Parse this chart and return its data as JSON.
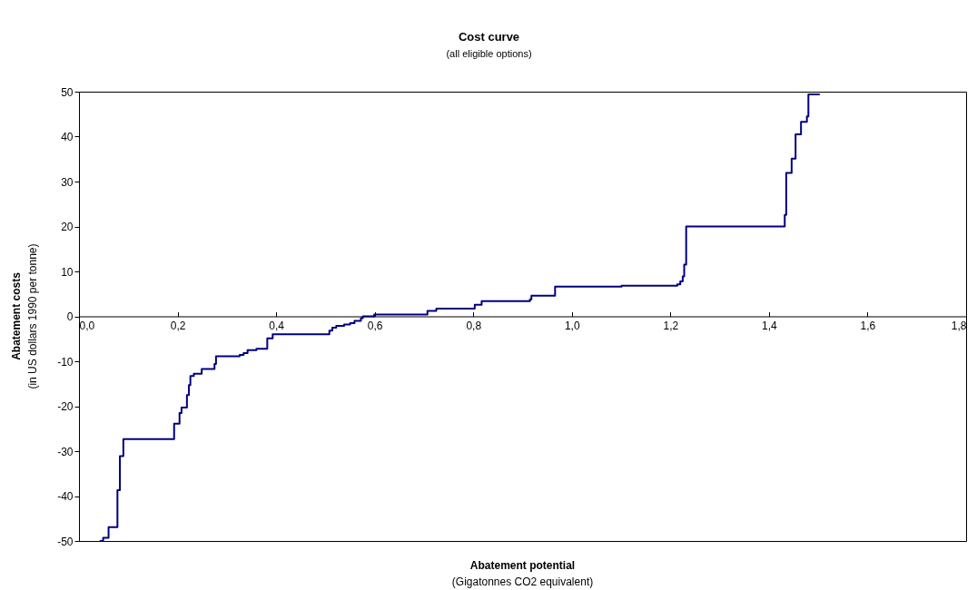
{
  "chart_data": {
    "type": "step",
    "title": "Cost curve",
    "subtitle": "(all eligible options)",
    "xlabel": "Abatement potential\n(Gigatonnes CO2 equivalent)",
    "ylabel": "Abatement costs\n(in US dollars 1990 per tonne)",
    "x": [
      0.042,
      0.049,
      0.06,
      0.078,
      0.083,
      0.09,
      0.193,
      0.204,
      0.208,
      0.219,
      0.223,
      0.226,
      0.233,
      0.249,
      0.275,
      0.278,
      0.326,
      0.334,
      0.342,
      0.36,
      0.382,
      0.393,
      0.508,
      0.514,
      0.522,
      0.538,
      0.55,
      0.559,
      0.572,
      0.576,
      0.599,
      0.707,
      0.725,
      0.803,
      0.817,
      0.915,
      0.918,
      0.966,
      1.101,
      1.214,
      1.22,
      1.225,
      1.228,
      1.232,
      1.432,
      1.435,
      1.446,
      1.454,
      1.465,
      1.477,
      1.48,
      1.503
    ],
    "series": [
      {
        "color": "#000080",
        "values": [
          -50,
          -49.3,
          -46.9,
          -38.7,
          -31.1,
          -27.3,
          -23.9,
          -21.5,
          -20.3,
          -17.5,
          -15.3,
          -13.3,
          -12.8,
          -11.7,
          -10.6,
          -8.9,
          -8.6,
          -8.2,
          -7.5,
          -7.2,
          -4.9,
          -4.0,
          -3.2,
          -2.5,
          -2.1,
          -1.8,
          -1.5,
          -1.0,
          -0.4,
          0,
          0.4,
          1.2,
          1.7,
          2.6,
          3.4,
          3.8,
          4.6,
          6.6,
          6.8,
          7.1,
          7.8,
          8.9,
          11.5,
          20,
          22.6,
          31.9,
          35.1,
          40.5,
          43.3,
          44.5,
          49.4,
          49.4
        ]
      }
    ],
    "xlim": [
      0,
      1.8
    ],
    "xticks": [
      {
        "value": 0,
        "label": "0,0"
      },
      {
        "value": 0.2,
        "label": "0,2"
      },
      {
        "value": 0.4,
        "label": "0,4"
      },
      {
        "value": 0.6,
        "label": "0,6"
      },
      {
        "value": 0.8,
        "label": "0,8"
      },
      {
        "value": 1.0,
        "label": "1,0"
      },
      {
        "value": 1.2,
        "label": "1,2"
      },
      {
        "value": 1.4,
        "label": "1,4"
      },
      {
        "value": 1.6,
        "label": "1,6"
      },
      {
        "value": 1.8,
        "label": "1,8"
      }
    ],
    "ylim": [
      -50,
      50
    ],
    "yticks": [
      -50,
      -40,
      -30,
      -20,
      -10,
      0,
      10,
      20,
      30,
      40,
      50
    ],
    "grid": false,
    "line_style": "solid"
  }
}
